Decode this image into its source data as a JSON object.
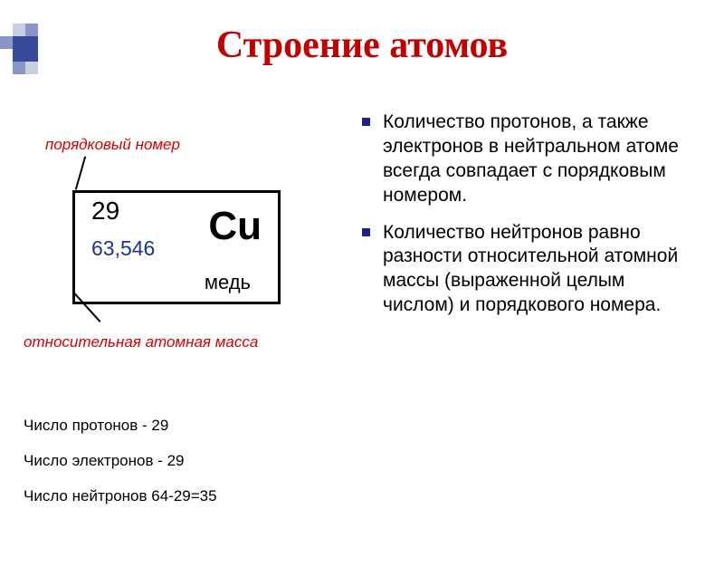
{
  "colors": {
    "title": "#c20000",
    "ordinal_label": "#d60000",
    "mass_label": "#d60000",
    "mass_value": "#2030a0",
    "bullet": "#20208a",
    "deco_light": "#c9cfe3",
    "deco_mid": "#8a96c8",
    "deco_dark": "#3a4a9a"
  },
  "title": "Строение атомов",
  "element": {
    "ordinal_label": "порядковый номер",
    "mass_label": "относительная атомная масса",
    "atomic_number": "29",
    "symbol": "Cu",
    "mass": "63,546",
    "name": "медь"
  },
  "counts": {
    "protons": "Число протонов - 29",
    "electrons": "Число электронов - 29",
    "neutrons": "Число нейтронов  64-29=35"
  },
  "bullets": [
    "Количество протонов, а также электронов в нейтральном атоме всегда совпадает с порядковым номером.",
    "Количество нейтронов равно разности относительной атомной массы (выраженной целым числом) и порядкового номера."
  ]
}
